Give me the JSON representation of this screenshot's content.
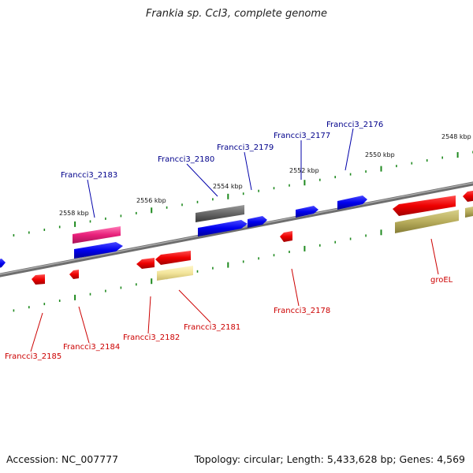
{
  "title": "Frankia sp. CcI3, complete genome",
  "footer": {
    "accession": "Accession: NC_007777",
    "summary": "Topology: circular; Length: 5,433,628 bp; Genes: 4,569"
  },
  "colors": {
    "backbone": "#777777",
    "tick": "#1f8a1f",
    "forward_label": "#00008b",
    "reverse_label": "#cc0000"
  },
  "tick_labels": [
    "2558 kbp",
    "2556 kbp",
    "2554 kbp",
    "2552 kbp",
    "2550 kbp",
    "2548 kbp"
  ],
  "genes": [
    {
      "name": "Francci3_2183",
      "strand": "+"
    },
    {
      "name": "Francci3_2180",
      "strand": "+"
    },
    {
      "name": "Francci3_2179",
      "strand": "+"
    },
    {
      "name": "Francci3_2177",
      "strand": "+"
    },
    {
      "name": "Francci3_2176",
      "strand": "+"
    },
    {
      "name": "Francci3_2185",
      "strand": "-"
    },
    {
      "name": "Francci3_2184",
      "strand": "-"
    },
    {
      "name": "Francci3_2182",
      "strand": "-"
    },
    {
      "name": "Francci3_2181",
      "strand": "-"
    },
    {
      "name": "Francci3_2178",
      "strand": "-"
    },
    {
      "name": "groEL",
      "strand": "-"
    }
  ]
}
